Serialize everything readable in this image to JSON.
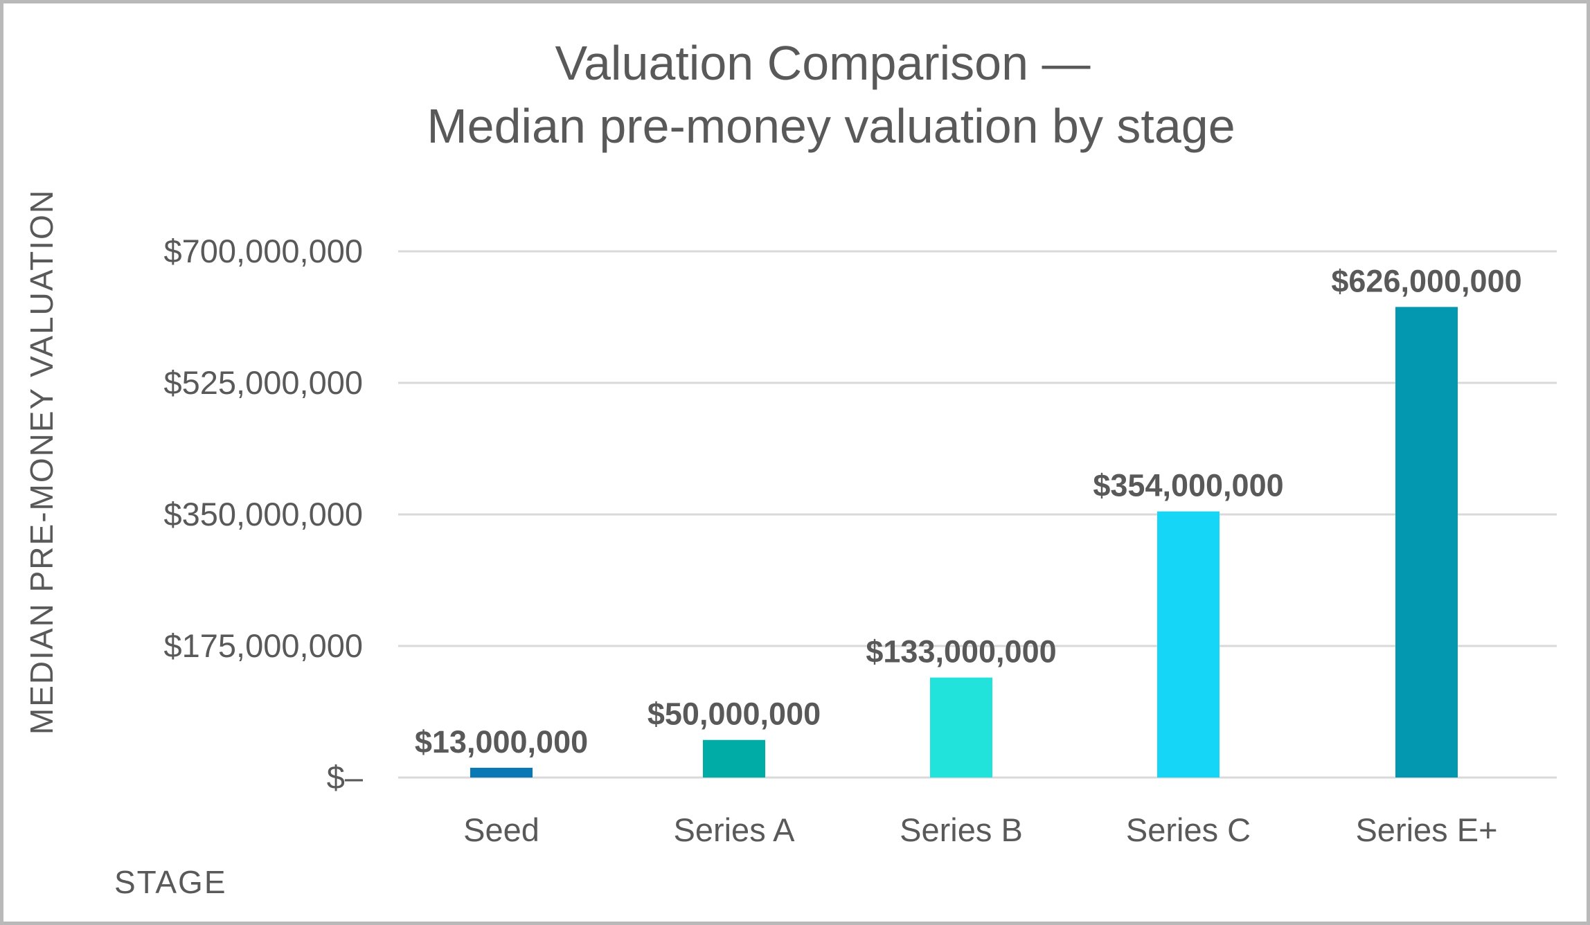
{
  "chart_data": {
    "type": "bar",
    "title_lines": [
      "Valuation Comparison —",
      "Median pre-money valuation by stage"
    ],
    "xlabel": "STAGE",
    "ylabel": "MEDIAN PRE-MONEY VALUATION",
    "categories": [
      "Seed",
      "Series A",
      "Series B",
      "Series C",
      "Series E+"
    ],
    "values": [
      13000000,
      50000000,
      133000000,
      354000000,
      626000000
    ],
    "value_labels": [
      "$13,000,000",
      "$50,000,000",
      "$133,000,000",
      "$354,000,000",
      "$626,000,000"
    ],
    "colors": [
      "#0a78b4",
      "#00ada6",
      "#22e2dc",
      "#15d6f6",
      "#0398b0"
    ],
    "ylim": [
      0,
      700000000
    ],
    "yticks": [
      0,
      175000000,
      350000000,
      525000000,
      700000000
    ],
    "ytick_labels": [
      "$–",
      "$175,000,000",
      "$350,000,000",
      "$525,000,000",
      "$700,000,000"
    ],
    "grid": true,
    "legend": "none"
  }
}
